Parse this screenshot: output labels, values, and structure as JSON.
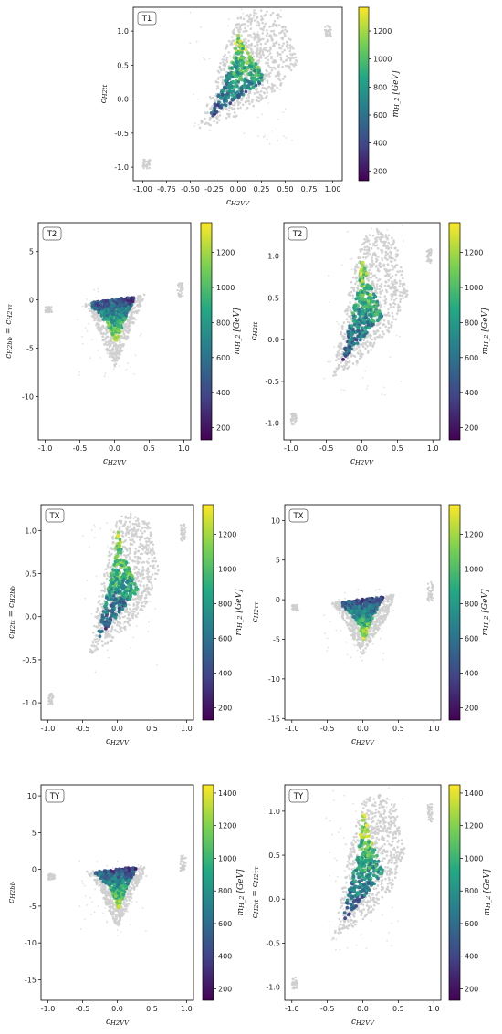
{
  "figure": {
    "colormap": [
      "#440154",
      "#414487",
      "#2a788e",
      "#22a884",
      "#7ad151",
      "#fde725"
    ],
    "background_point_color": "#cfcfcf"
  },
  "chart_data": [
    {
      "id": "T1",
      "type": "scatter",
      "panel_label": "T1",
      "xlabel": "c_{H2VV}",
      "ylabel": "c_{H2tt}",
      "xlim": [
        -1.1,
        1.1
      ],
      "ylim": [
        -1.2,
        1.35
      ],
      "xticks": [
        "-1.00",
        "-0.75",
        "-0.50",
        "-0.25",
        "0.00",
        "0.25",
        "0.50",
        "0.75",
        "1.00"
      ],
      "xtick_values": [
        -1.0,
        -0.75,
        -0.5,
        -0.25,
        0.0,
        0.25,
        0.5,
        0.75,
        1.0
      ],
      "yticks": [
        "-1.0",
        "-0.5",
        "0.0",
        "0.5",
        "1.0"
      ],
      "ytick_values": [
        -1.0,
        -0.5,
        0.0,
        0.5,
        1.0
      ],
      "colorbar": {
        "label": "m_{H_2} [GeV]",
        "range": [
          130,
          1370
        ],
        "ticks": [
          "200",
          "400",
          "600",
          "800",
          "1000",
          "1200"
        ],
        "tick_values": [
          200,
          400,
          600,
          800,
          1000,
          1200
        ]
      },
      "regions": {
        "background": [
          [
            -0.42,
            -0.45
          ],
          [
            -0.2,
            0.5
          ],
          [
            0.0,
            1.2
          ],
          [
            0.2,
            1.33
          ],
          [
            0.45,
            1.25
          ],
          [
            0.65,
            0.55
          ],
          [
            0.4,
            0.1
          ],
          [
            0.0,
            -0.25
          ]
        ],
        "colored": [
          [
            -0.3,
            -0.28
          ],
          [
            -0.05,
            0.6
          ],
          [
            0.0,
            1.03
          ],
          [
            0.1,
            0.7
          ],
          [
            0.3,
            0.3
          ]
        ],
        "outliers": [
          {
            "x": -0.96,
            "y": -0.95,
            "w": 0.08,
            "h": 0.14
          },
          {
            "x": 0.95,
            "y": 1.0,
            "w": 0.07,
            "h": 0.17
          }
        ]
      }
    },
    {
      "id": "T2a",
      "type": "scatter",
      "panel_label": "T2",
      "xlabel": "c_{H2VV}",
      "ylabel": "c_{H2bb} = c_{H2ττ}",
      "xlim": [
        -1.1,
        1.1
      ],
      "ylim": [
        -14.5,
        8.0
      ],
      "xticks": [
        "-1.0",
        "-0.5",
        "0.0",
        "0.5",
        "1.0"
      ],
      "xtick_values": [
        -1.0,
        -0.5,
        0.0,
        0.5,
        1.0
      ],
      "yticks": [
        "-10",
        "-5",
        "0",
        "5"
      ],
      "ytick_values": [
        -10,
        -5,
        0,
        5
      ],
      "colorbar": {
        "label": "m_{H_2} [GeV]",
        "range": [
          130,
          1370
        ],
        "ticks": [
          "200",
          "400",
          "600",
          "800",
          "1000",
          "1200"
        ],
        "tick_values": [
          200,
          400,
          600,
          800,
          1000,
          1200
        ]
      },
      "regions": {
        "background": [
          [
            -0.45,
            -0.3
          ],
          [
            0.0,
            -0.1
          ],
          [
            0.45,
            0.6
          ],
          [
            0.3,
            -2.0
          ],
          [
            0.1,
            -5.5
          ],
          [
            0.0,
            -7.0
          ],
          [
            -0.1,
            -5.5
          ],
          [
            -0.3,
            -2.0
          ]
        ],
        "colored": [
          [
            -0.38,
            -0.3
          ],
          [
            0.3,
            0.35
          ],
          [
            0.15,
            -2.0
          ],
          [
            0.02,
            -4.5
          ],
          [
            -0.1,
            -2.5
          ]
        ],
        "outliers": [
          {
            "x": -0.95,
            "y": -1.0,
            "w": 0.1,
            "h": 0.6
          },
          {
            "x": 0.95,
            "y": 1.0,
            "w": 0.08,
            "h": 1.5
          }
        ]
      }
    },
    {
      "id": "T2b",
      "type": "scatter",
      "panel_label": "T2",
      "xlabel": "c_{H2VV}",
      "ylabel": "c_{H2tt}",
      "xlim": [
        -1.1,
        1.1
      ],
      "ylim": [
        -1.2,
        1.4
      ],
      "xticks": [
        "-1.0",
        "-0.5",
        "0.0",
        "0.5",
        "1.0"
      ],
      "xtick_values": [
        -1.0,
        -0.5,
        0.0,
        0.5,
        1.0
      ],
      "yticks": [
        "-1.0",
        "-0.5",
        "0.0",
        "0.5",
        "1.0"
      ],
      "ytick_values": [
        -1.0,
        -0.5,
        0.0,
        0.5,
        1.0
      ],
      "colorbar": {
        "label": "m_{H_2} [GeV]",
        "range": [
          130,
          1370
        ],
        "ticks": [
          "200",
          "400",
          "600",
          "800",
          "1000",
          "1200"
        ],
        "tick_values": [
          200,
          400,
          600,
          800,
          1000,
          1200
        ]
      },
      "regions": {
        "background": [
          [
            -0.42,
            -0.45
          ],
          [
            -0.2,
            0.5
          ],
          [
            0.0,
            1.2
          ],
          [
            0.2,
            1.33
          ],
          [
            0.45,
            1.25
          ],
          [
            0.65,
            0.55
          ],
          [
            0.4,
            0.1
          ],
          [
            0.0,
            -0.25
          ]
        ],
        "colored": [
          [
            -0.3,
            -0.28
          ],
          [
            -0.05,
            0.6
          ],
          [
            0.0,
            1.03
          ],
          [
            0.1,
            0.7
          ],
          [
            0.3,
            0.3
          ]
        ],
        "outliers": [
          {
            "x": -0.96,
            "y": -0.95,
            "w": 0.08,
            "h": 0.14
          },
          {
            "x": 0.95,
            "y": 1.0,
            "w": 0.07,
            "h": 0.17
          }
        ]
      }
    },
    {
      "id": "TXa",
      "type": "scatter",
      "panel_label": "TX",
      "xlabel": "c_{H2VV}",
      "ylabel": "c_{H2tt} = c_{H2bb}",
      "xlim": [
        -1.1,
        1.1
      ],
      "ylim": [
        -1.2,
        1.3
      ],
      "xticks": [
        "-1.0",
        "-0.5",
        "0.0",
        "0.5",
        "1.0"
      ],
      "xtick_values": [
        -1.0,
        -0.5,
        0.0,
        0.5,
        1.0
      ],
      "yticks": [
        "-1.0",
        "-0.5",
        "0.0",
        "0.5",
        "1.0"
      ],
      "ytick_values": [
        -1.0,
        -0.5,
        0.0,
        0.5,
        1.0
      ],
      "colorbar": {
        "label": "m_{H_2} [GeV]",
        "range": [
          130,
          1370
        ],
        "ticks": [
          "200",
          "400",
          "600",
          "800",
          "1000",
          "1200"
        ],
        "tick_values": [
          200,
          400,
          600,
          800,
          1000,
          1200
        ]
      },
      "regions": {
        "background": [
          [
            -0.42,
            -0.45
          ],
          [
            -0.2,
            0.5
          ],
          [
            0.0,
            1.15
          ],
          [
            0.2,
            1.2
          ],
          [
            0.45,
            1.1
          ],
          [
            0.6,
            0.55
          ],
          [
            0.4,
            0.1
          ],
          [
            0.0,
            -0.25
          ]
        ],
        "colored": [
          [
            -0.3,
            -0.28
          ],
          [
            -0.05,
            0.6
          ],
          [
            0.0,
            1.03
          ],
          [
            0.1,
            0.7
          ],
          [
            0.3,
            0.3
          ]
        ],
        "outliers": [
          {
            "x": -0.96,
            "y": -0.95,
            "w": 0.08,
            "h": 0.14
          },
          {
            "x": 0.95,
            "y": 0.98,
            "w": 0.07,
            "h": 0.2
          }
        ]
      }
    },
    {
      "id": "TXb",
      "type": "scatter",
      "panel_label": "TX",
      "xlabel": "c_{H2VV}",
      "ylabel": "c_{H2ττ}",
      "xlim": [
        -1.1,
        1.1
      ],
      "ylim": [
        -15.2,
        12.0
      ],
      "xticks": [
        "-1.0",
        "-0.5",
        "0.0",
        "0.5",
        "1.0"
      ],
      "xtick_values": [
        -1.0,
        -0.5,
        0.0,
        0.5,
        1.0
      ],
      "yticks": [
        "-15",
        "-10",
        "-5",
        "0",
        "5",
        "10"
      ],
      "ytick_values": [
        -15,
        -10,
        -5,
        0,
        5,
        10
      ],
      "colorbar": {
        "label": "m_{H_2} [GeV]",
        "range": [
          130,
          1370
        ],
        "ticks": [
          "200",
          "400",
          "600",
          "800",
          "1000",
          "1200"
        ],
        "tick_values": [
          200,
          400,
          600,
          800,
          1000,
          1200
        ]
      },
      "regions": {
        "background": [
          [
            -0.45,
            -0.3
          ],
          [
            0.0,
            -0.1
          ],
          [
            0.45,
            0.7
          ],
          [
            0.35,
            -2.0
          ],
          [
            0.1,
            -5.5
          ],
          [
            0.0,
            -7.0
          ],
          [
            -0.1,
            -5.5
          ],
          [
            -0.3,
            -2.0
          ]
        ],
        "colored": [
          [
            -0.35,
            -0.3
          ],
          [
            0.3,
            0.35
          ],
          [
            0.15,
            -2.0
          ],
          [
            0.02,
            -5.0
          ],
          [
            -0.1,
            -2.5
          ]
        ],
        "outliers": [
          {
            "x": -0.95,
            "y": -1.0,
            "w": 0.1,
            "h": 0.8
          },
          {
            "x": 0.95,
            "y": 1.0,
            "w": 0.08,
            "h": 2.5
          }
        ]
      }
    },
    {
      "id": "TYa",
      "type": "scatter",
      "panel_label": "TY",
      "xlabel": "c_{H2VV}",
      "ylabel": "c_{H2bb}",
      "xlim": [
        -1.1,
        1.1
      ],
      "ylim": [
        -17.8,
        11.5
      ],
      "xticks": [
        "-1.0",
        "-0.5",
        "0.0",
        "0.5",
        "1.0"
      ],
      "xtick_values": [
        -1.0,
        -0.5,
        0.0,
        0.5,
        1.0
      ],
      "yticks": [
        "-15",
        "-10",
        "-5",
        "0",
        "5",
        "10"
      ],
      "ytick_values": [
        -15,
        -10,
        -5,
        0,
        5,
        10
      ],
      "colorbar": {
        "label": "m_{H_2} [GeV]",
        "range": [
          130,
          1450
        ],
        "ticks": [
          "200",
          "400",
          "600",
          "800",
          "1000",
          "1200",
          "1400"
        ],
        "tick_values": [
          200,
          400,
          600,
          800,
          1000,
          1200,
          1400
        ]
      },
      "regions": {
        "background": [
          [
            -0.45,
            -0.3
          ],
          [
            0.0,
            -0.1
          ],
          [
            0.45,
            0.6
          ],
          [
            0.3,
            -2.0
          ],
          [
            0.1,
            -6.0
          ],
          [
            0.0,
            -8.0
          ],
          [
            -0.1,
            -6.0
          ],
          [
            -0.3,
            -2.0
          ]
        ],
        "colored": [
          [
            -0.35,
            -0.3
          ],
          [
            0.3,
            0.35
          ],
          [
            0.15,
            -2.0
          ],
          [
            0.02,
            -5.5
          ],
          [
            -0.1,
            -2.5
          ]
        ],
        "outliers": [
          {
            "x": -0.95,
            "y": -1.0,
            "w": 0.1,
            "h": 0.8
          },
          {
            "x": 0.95,
            "y": 1.0,
            "w": 0.08,
            "h": 2.5
          }
        ]
      }
    },
    {
      "id": "TYb",
      "type": "scatter",
      "panel_label": "TY",
      "xlabel": "c_{H2VV}",
      "ylabel": "c_{H2tt} = c_{H2ττ}",
      "xlim": [
        -1.1,
        1.1
      ],
      "ylim": [
        -1.15,
        1.3
      ],
      "xticks": [
        "-1.0",
        "-0.5",
        "0.0",
        "0.5",
        "1.0"
      ],
      "xtick_values": [
        -1.0,
        -0.5,
        0.0,
        0.5,
        1.0
      ],
      "yticks": [
        "-1.0",
        "-0.5",
        "0.0",
        "0.5",
        "1.0"
      ],
      "ytick_values": [
        -1.0,
        -0.5,
        0.0,
        0.5,
        1.0
      ],
      "colorbar": {
        "label": "m_{H_2} [GeV]",
        "range": [
          130,
          1450
        ],
        "ticks": [
          "200",
          "400",
          "600",
          "800",
          "1000",
          "1200",
          "1400"
        ],
        "tick_values": [
          200,
          400,
          600,
          800,
          1000,
          1200,
          1400
        ]
      },
      "regions": {
        "background": [
          [
            -0.42,
            -0.45
          ],
          [
            -0.2,
            0.5
          ],
          [
            0.0,
            1.15
          ],
          [
            0.2,
            1.2
          ],
          [
            0.45,
            1.1
          ],
          [
            0.6,
            0.55
          ],
          [
            0.4,
            0.1
          ],
          [
            0.0,
            -0.25
          ]
        ],
        "colored": [
          [
            -0.3,
            -0.28
          ],
          [
            -0.05,
            0.6
          ],
          [
            0.0,
            1.03
          ],
          [
            0.1,
            0.7
          ],
          [
            0.3,
            0.3
          ]
        ],
        "outliers": [
          {
            "x": -0.96,
            "y": -0.95,
            "w": 0.08,
            "h": 0.14
          },
          {
            "x": 0.95,
            "y": 0.98,
            "w": 0.07,
            "h": 0.2
          }
        ]
      }
    }
  ]
}
